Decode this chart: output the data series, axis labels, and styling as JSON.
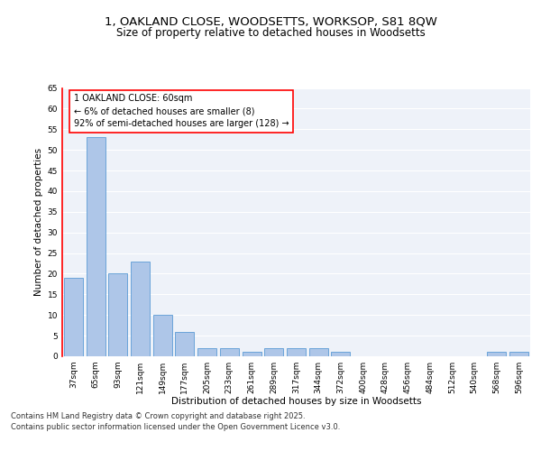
{
  "title_line1": "1, OAKLAND CLOSE, WOODSETTS, WORKSOP, S81 8QW",
  "title_line2": "Size of property relative to detached houses in Woodsetts",
  "xlabel": "Distribution of detached houses by size in Woodsetts",
  "ylabel": "Number of detached properties",
  "categories": [
    "37sqm",
    "65sqm",
    "93sqm",
    "121sqm",
    "149sqm",
    "177sqm",
    "205sqm",
    "233sqm",
    "261sqm",
    "289sqm",
    "317sqm",
    "344sqm",
    "372sqm",
    "400sqm",
    "428sqm",
    "456sqm",
    "484sqm",
    "512sqm",
    "540sqm",
    "568sqm",
    "596sqm"
  ],
  "values": [
    19,
    53,
    20,
    23,
    10,
    6,
    2,
    2,
    1,
    2,
    2,
    2,
    1,
    0,
    0,
    0,
    0,
    0,
    0,
    1,
    1
  ],
  "bar_color": "#aec6e8",
  "bar_edge_color": "#5b9bd5",
  "annotation_text": "1 OAKLAND CLOSE: 60sqm\n← 6% of detached houses are smaller (8)\n92% of semi-detached houses are larger (128) →",
  "ylim": [
    0,
    65
  ],
  "yticks": [
    0,
    5,
    10,
    15,
    20,
    25,
    30,
    35,
    40,
    45,
    50,
    55,
    60,
    65
  ],
  "background_color": "#eef2f9",
  "grid_color": "#ffffff",
  "footer_line1": "Contains HM Land Registry data © Crown copyright and database right 2025.",
  "footer_line2": "Contains public sector information licensed under the Open Government Licence v3.0.",
  "title_fontsize": 9.5,
  "subtitle_fontsize": 8.5,
  "axis_label_fontsize": 7.5,
  "tick_fontsize": 6.5,
  "annotation_fontsize": 7,
  "footer_fontsize": 6
}
